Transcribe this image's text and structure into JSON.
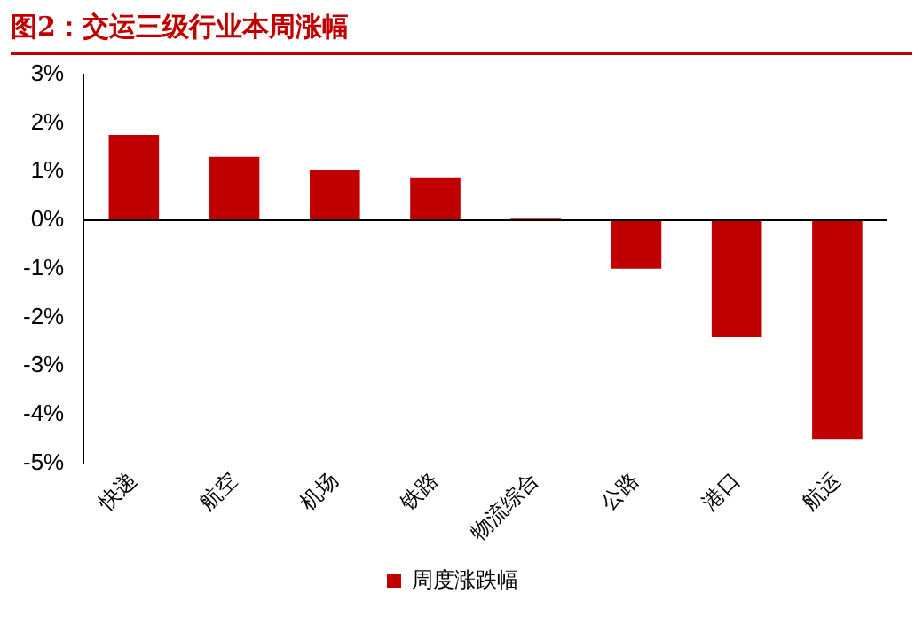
{
  "chart_data": {
    "type": "bar",
    "title": "图2：交运三级行业本周涨幅",
    "categories": [
      "快递",
      "航空",
      "机场",
      "铁路",
      "物流综合",
      "公路",
      "港口",
      "航运"
    ],
    "series": [
      {
        "name": "周度涨跌幅",
        "color": "#c00000",
        "values": [
          1.75,
          1.3,
          1.02,
          0.88,
          0.03,
          -1.0,
          -2.4,
          -4.5
        ]
      }
    ],
    "ylim": [
      -5,
      3
    ],
    "yticks": [
      {
        "value": -5,
        "label": "-5%"
      },
      {
        "value": -4,
        "label": "-4%"
      },
      {
        "value": -3,
        "label": "-3%"
      },
      {
        "value": -2,
        "label": "-2%"
      },
      {
        "value": -1,
        "label": "-1%"
      },
      {
        "value": 0,
        "label": "0%"
      },
      {
        "value": 1,
        "label": "1%"
      },
      {
        "value": 2,
        "label": "2%"
      },
      {
        "value": 3,
        "label": "3%"
      }
    ],
    "legend": "bottom"
  }
}
